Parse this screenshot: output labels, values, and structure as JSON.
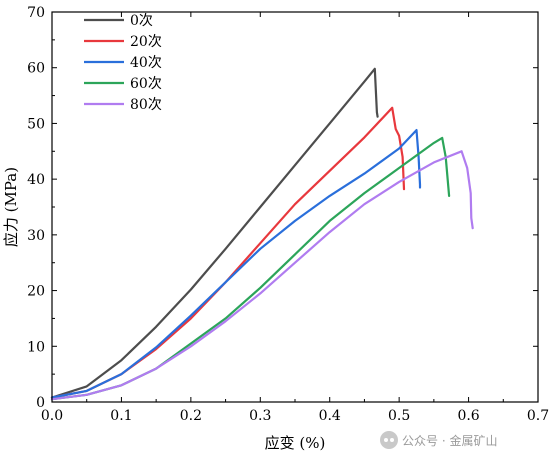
{
  "chart_data": {
    "type": "line",
    "xlabel": "应变 (%)",
    "ylabel": "应力 (MPa)",
    "xlim": [
      0,
      0.7
    ],
    "ylim": [
      0,
      70
    ],
    "xticks": [
      "0.0",
      "0.1",
      "0.2",
      "0.3",
      "0.4",
      "0.5",
      "0.6",
      "0.7"
    ],
    "yticks": [
      "0",
      "10",
      "20",
      "30",
      "40",
      "50",
      "60",
      "70"
    ],
    "legend_position": "top-left",
    "grid": false,
    "series": [
      {
        "name": "0次",
        "color": "#4d4d4d",
        "points": [
          [
            0,
            0.8
          ],
          [
            0.05,
            2.8
          ],
          [
            0.1,
            7.5
          ],
          [
            0.15,
            13.5
          ],
          [
            0.2,
            20.2
          ],
          [
            0.25,
            27.5
          ],
          [
            0.3,
            35
          ],
          [
            0.35,
            42.5
          ],
          [
            0.4,
            50
          ],
          [
            0.45,
            57.5
          ],
          [
            0.465,
            59.8
          ],
          [
            0.468,
            52
          ],
          [
            0.469,
            51.2
          ]
        ]
      },
      {
        "name": "20次",
        "color": "#e8383d",
        "points": [
          [
            0,
            0.8
          ],
          [
            0.05,
            2
          ],
          [
            0.1,
            5
          ],
          [
            0.15,
            9.5
          ],
          [
            0.2,
            15
          ],
          [
            0.25,
            21.5
          ],
          [
            0.3,
            28.5
          ],
          [
            0.35,
            35.5
          ],
          [
            0.4,
            41.5
          ],
          [
            0.45,
            47.5
          ],
          [
            0.49,
            52.8
          ],
          [
            0.495,
            49
          ],
          [
            0.5,
            47.8
          ],
          [
            0.505,
            44
          ],
          [
            0.507,
            38.2
          ]
        ]
      },
      {
        "name": "40次",
        "color": "#2a6fdb",
        "points": [
          [
            0,
            0.8
          ],
          [
            0.05,
            2
          ],
          [
            0.1,
            5
          ],
          [
            0.15,
            9.8
          ],
          [
            0.2,
            15.5
          ],
          [
            0.25,
            21.5
          ],
          [
            0.3,
            27.5
          ],
          [
            0.35,
            32.5
          ],
          [
            0.4,
            37
          ],
          [
            0.45,
            41
          ],
          [
            0.5,
            45.5
          ],
          [
            0.525,
            48.8
          ],
          [
            0.528,
            44
          ],
          [
            0.53,
            39
          ],
          [
            0.53,
            38.5
          ]
        ]
      },
      {
        "name": "60次",
        "color": "#2ca55a",
        "points": [
          [
            0,
            0.5
          ],
          [
            0.05,
            1.3
          ],
          [
            0.1,
            3
          ],
          [
            0.15,
            6
          ],
          [
            0.2,
            10.5
          ],
          [
            0.25,
            15
          ],
          [
            0.3,
            20.5
          ],
          [
            0.35,
            26.5
          ],
          [
            0.4,
            32.5
          ],
          [
            0.45,
            37.5
          ],
          [
            0.5,
            42
          ],
          [
            0.55,
            46.5
          ],
          [
            0.562,
            47.4
          ],
          [
            0.567,
            44
          ],
          [
            0.572,
            37
          ]
        ]
      },
      {
        "name": "80次",
        "color": "#b07cf0",
        "points": [
          [
            0,
            0.5
          ],
          [
            0.05,
            1.3
          ],
          [
            0.1,
            3
          ],
          [
            0.15,
            6
          ],
          [
            0.2,
            10
          ],
          [
            0.25,
            14.5
          ],
          [
            0.3,
            19.5
          ],
          [
            0.35,
            25
          ],
          [
            0.4,
            30.5
          ],
          [
            0.45,
            35.5
          ],
          [
            0.5,
            39.5
          ],
          [
            0.55,
            43
          ],
          [
            0.59,
            45
          ],
          [
            0.598,
            42
          ],
          [
            0.603,
            37.5
          ],
          [
            0.604,
            33
          ],
          [
            0.606,
            31.2
          ]
        ]
      }
    ]
  },
  "watermark": {
    "text": "公众号 · 金属矿山",
    "icon": "wechat-icon"
  }
}
